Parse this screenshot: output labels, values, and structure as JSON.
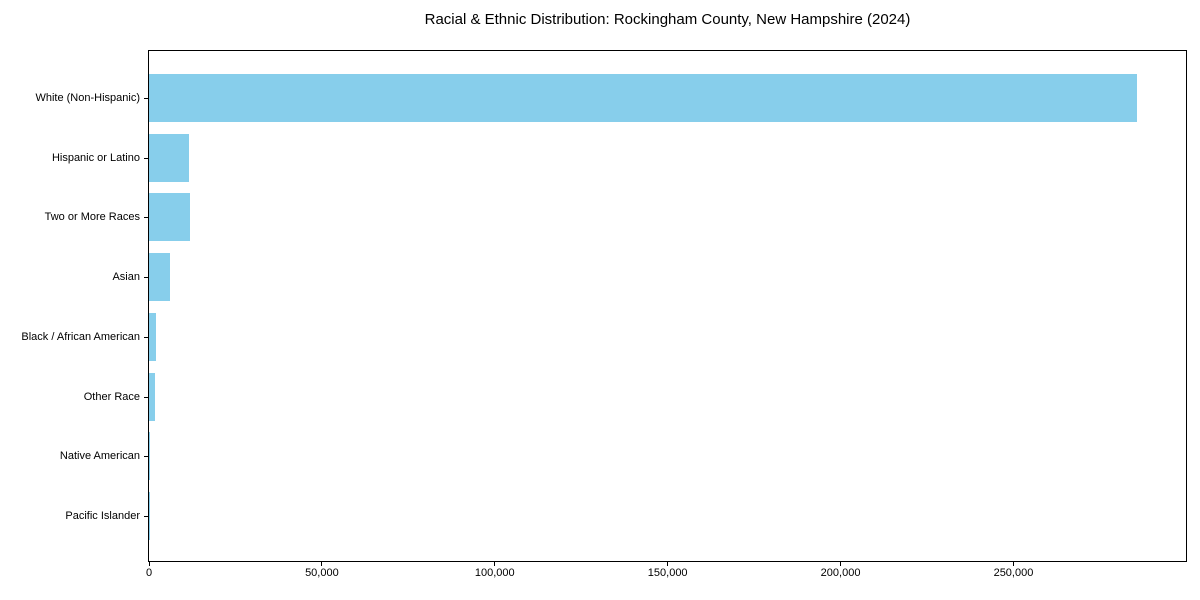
{
  "chart_data": {
    "type": "bar",
    "orientation": "horizontal",
    "title": "Racial & Ethnic Distribution: Rockingham County, New Hampshire (2024)",
    "categories": [
      "White (Non-Hispanic)",
      "Hispanic or Latino",
      "Two or More Races",
      "Asian",
      "Black / African American",
      "Other Race",
      "Native American",
      "Pacific Islander"
    ],
    "values": [
      285600,
      11700,
      12000,
      6000,
      2000,
      1750,
      250,
      80
    ],
    "xlabel": "",
    "ylabel": "",
    "xlim": [
      0,
      299900
    ],
    "xticks": [
      0,
      50000,
      100000,
      150000,
      200000,
      250000
    ],
    "xtick_labels": [
      "0",
      "50,000",
      "100,000",
      "150,000",
      "200,000",
      "250,000"
    ],
    "bar_color": "#87CEEB",
    "axis_color": "#000000",
    "background_color": "#FFFFFF",
    "grid": false,
    "legend": null
  }
}
